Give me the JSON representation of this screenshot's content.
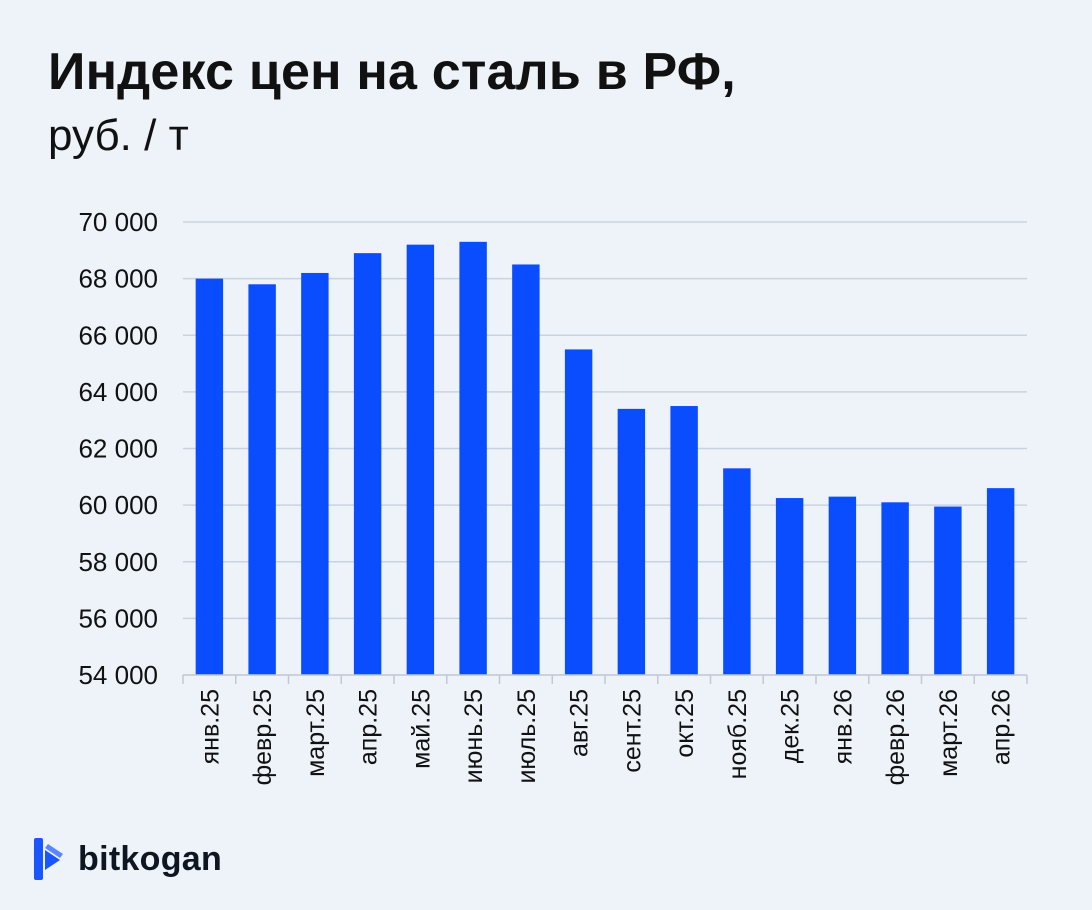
{
  "title": "Индекс цен на сталь в РФ,",
  "subtitle": "руб. / т",
  "brand": {
    "name": "bitkogan",
    "color": "#1a56ff"
  },
  "colors": {
    "bar": "#0a4dff",
    "grid": "#c9d3df",
    "background": "#eef3f9"
  },
  "chart_data": {
    "type": "bar",
    "title": "Индекс цен на сталь в РФ,",
    "subtitle": "руб. / т",
    "categories": [
      "янв.25",
      "февр.25",
      "март.25",
      "апр.25",
      "май.25",
      "июнь.25",
      "июль.25",
      "авг.25",
      "сент.25",
      "окт.25",
      "нояб.25",
      "дек.25",
      "янв.26",
      "февр.26",
      "март.26",
      "апр.26"
    ],
    "values": [
      68000,
      67800,
      68200,
      68900,
      69200,
      69300,
      68500,
      65500,
      63400,
      63500,
      61300,
      60250,
      60300,
      60100,
      59950,
      60600
    ],
    "ylim": [
      54000,
      70000
    ],
    "yticks": [
      54000,
      56000,
      58000,
      60000,
      62000,
      64000,
      66000,
      68000,
      70000
    ],
    "ytick_labels": [
      "54 000",
      "56 000",
      "58 000",
      "60 000",
      "62 000",
      "64 000",
      "66 000",
      "68 000",
      "70 000"
    ],
    "grid": true,
    "legend": "none",
    "xlabel": "",
    "ylabel": ""
  }
}
